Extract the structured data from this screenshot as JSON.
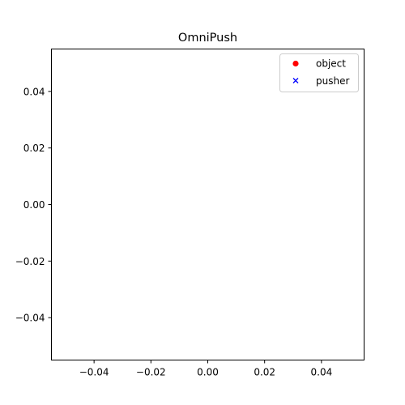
{
  "chart_data": {
    "type": "scatter",
    "title": "OmniPush",
    "xlabel": "",
    "ylabel": "",
    "xlim": [
      -0.055,
      0.055
    ],
    "ylim": [
      -0.055,
      0.055
    ],
    "xticks": [
      -0.04,
      -0.02,
      0.0,
      0.02,
      0.04
    ],
    "yticks": [
      -0.04,
      -0.02,
      0.0,
      0.02,
      0.04
    ],
    "xtick_labels": [
      "−0.04",
      "−0.02",
      "0.00",
      "0.02",
      "0.04"
    ],
    "ytick_labels": [
      "−0.04",
      "−0.02",
      "0.00",
      "0.02",
      "0.04"
    ],
    "grid": false,
    "legend_position": "top-right",
    "series": [
      {
        "name": "object",
        "marker": "circle",
        "color": "#ff0000",
        "x": [],
        "y": []
      },
      {
        "name": "pusher",
        "marker": "x",
        "color": "#0000ff",
        "x": [],
        "y": []
      }
    ]
  }
}
